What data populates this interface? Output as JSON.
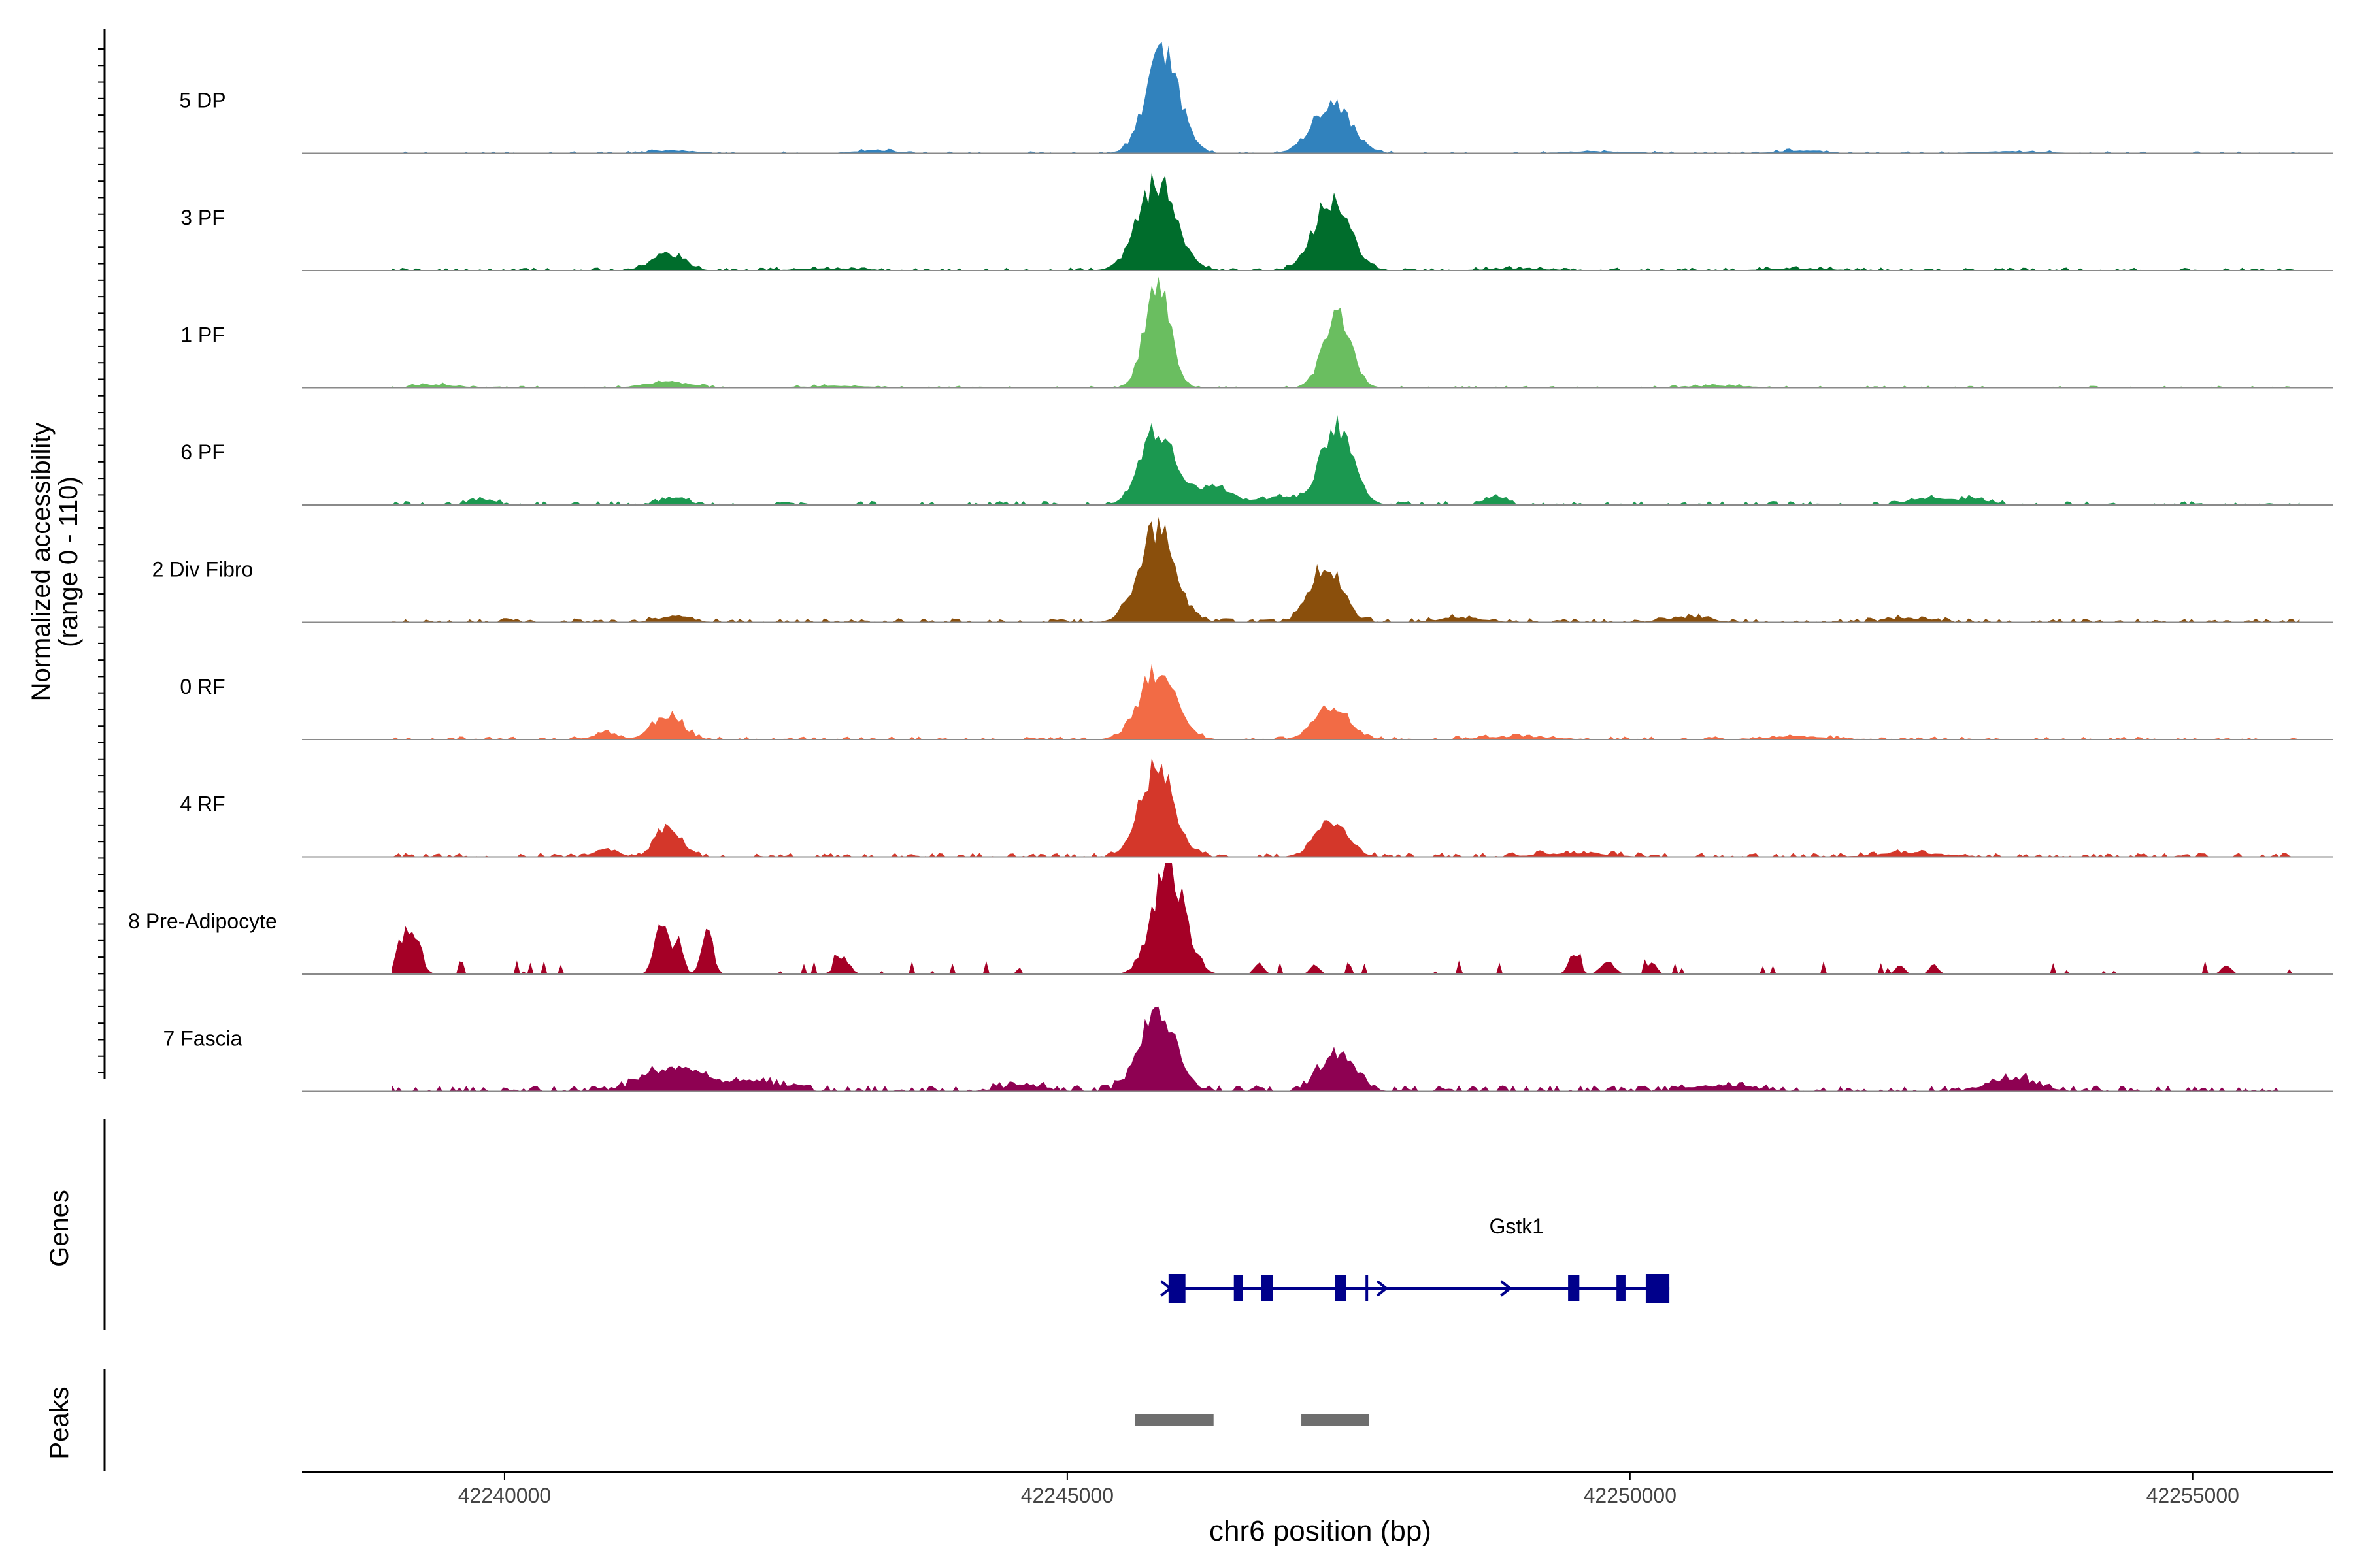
{
  "chart_data": {
    "type": "area",
    "title": "",
    "ylabel": "Normalized accessibility",
    "ylabel_range": "(range 0 - 110)",
    "xlabel": "chr6 position (bp)",
    "xlim": [
      42238200,
      42256250
    ],
    "ylim": [
      0,
      110
    ],
    "x_ticks": [
      42240000,
      42245000,
      42250000,
      42255000
    ],
    "x_tick_labels": [
      "42240000",
      "42245000",
      "42250000",
      "42255000"
    ],
    "genes_label": "Genes",
    "peaks_label": "Peaks",
    "series": [
      {
        "name": "5 DP",
        "color": "#3182bd",
        "peaks": [
          [
            42245850,
            100,
            150
          ],
          [
            42247350,
            50,
            170
          ],
          [
            42241500,
            3,
            200
          ],
          [
            42243300,
            3,
            200
          ],
          [
            42249700,
            2,
            300
          ],
          [
            42251500,
            3,
            200
          ],
          [
            42253400,
            2,
            300
          ]
        ],
        "noise": 2,
        "noise_density": 0.3,
        "seed": 11
      },
      {
        "name": "3 PF",
        "color": "#006d2c",
        "peaks": [
          [
            42245800,
            88,
            170
          ],
          [
            42247350,
            70,
            160
          ],
          [
            42241450,
            18,
            140
          ],
          [
            42242900,
            2,
            300
          ],
          [
            42249000,
            2,
            300
          ],
          [
            42251500,
            2,
            300
          ]
        ],
        "noise": 3,
        "noise_density": 0.4,
        "seed": 23
      },
      {
        "name": "1 PF",
        "color": "#6abe60",
        "peaks": [
          [
            42245800,
            110,
            110
          ],
          [
            42247400,
            80,
            120
          ],
          [
            42241450,
            6,
            200
          ],
          [
            42239400,
            3,
            200
          ],
          [
            42243000,
            2,
            300
          ],
          [
            42250800,
            2,
            300
          ]
        ],
        "noise": 2,
        "noise_density": 0.35,
        "seed": 37
      },
      {
        "name": "6 PF",
        "color": "#1b9850",
        "peaks": [
          [
            42245800,
            75,
            150
          ],
          [
            42247400,
            78,
            140
          ],
          [
            42246300,
            20,
            150
          ],
          [
            42241500,
            8,
            120
          ],
          [
            42239800,
            6,
            120
          ],
          [
            42248800,
            8,
            90
          ],
          [
            42252600,
            6,
            150
          ],
          [
            42253000,
            6,
            200
          ],
          [
            42246900,
            8,
            200
          ]
        ],
        "noise": 4,
        "noise_density": 0.45,
        "seed": 41
      },
      {
        "name": "2 Div Fibro",
        "color": "#8a4f0c",
        "peaks": [
          [
            42245800,
            95,
            160
          ],
          [
            42247300,
            60,
            140
          ],
          [
            42241500,
            6,
            150
          ],
          [
            42248500,
            5,
            200
          ],
          [
            42250500,
            5,
            200
          ],
          [
            42252500,
            4,
            200
          ]
        ],
        "noise": 4,
        "noise_density": 0.5,
        "seed": 53
      },
      {
        "name": "0 RF",
        "color": "#f26b45",
        "peaks": [
          [
            42245800,
            70,
            160
          ],
          [
            42247350,
            35,
            150
          ],
          [
            42241450,
            26,
            130
          ],
          [
            42240900,
            8,
            100
          ],
          [
            42249000,
            3,
            300
          ],
          [
            42251500,
            3,
            300
          ]
        ],
        "noise": 3,
        "noise_density": 0.45,
        "seed": 67
      },
      {
        "name": "4 RF",
        "color": "#d4372a",
        "peaks": [
          [
            42245800,
            90,
            150
          ],
          [
            42247350,
            38,
            140
          ],
          [
            42241450,
            30,
            110
          ],
          [
            42240900,
            8,
            100
          ],
          [
            42249500,
            4,
            300
          ],
          [
            42252500,
            4,
            300
          ]
        ],
        "noise": 4,
        "noise_density": 0.5,
        "seed": 79
      },
      {
        "name": "8 Pre-Adipocyte",
        "color": "#a50026",
        "peaks": [
          [
            42245900,
            110,
            140
          ],
          [
            42239150,
            45,
            80
          ],
          [
            42241400,
            55,
            60
          ],
          [
            42241550,
            35,
            40
          ],
          [
            42241800,
            45,
            50
          ],
          [
            42243000,
            18,
            60
          ],
          [
            42249500,
            18,
            50
          ],
          [
            42249800,
            12,
            60
          ],
          [
            42250200,
            12,
            40
          ],
          [
            42252400,
            10,
            40
          ],
          [
            42252700,
            10,
            40
          ],
          [
            42255300,
            10,
            40
          ],
          [
            42246700,
            12,
            40
          ],
          [
            42247200,
            10,
            40
          ]
        ],
        "noise": 14,
        "noise_density": 0.1,
        "seed": 97
      },
      {
        "name": "7 Fascia",
        "color": "#8e0152",
        "peaks": [
          [
            42245800,
            80,
            160
          ],
          [
            42247400,
            40,
            150
          ],
          [
            42241500,
            24,
            250
          ],
          [
            42242200,
            10,
            250
          ],
          [
            42253400,
            14,
            200
          ],
          [
            42250800,
            6,
            300
          ],
          [
            42244600,
            6,
            200
          ]
        ],
        "noise": 6,
        "noise_density": 0.55,
        "seed": 113
      }
    ],
    "gene": {
      "name": "Gstk1",
      "color": "#00008b",
      "start": 42245900,
      "end": 42250350,
      "exons": [
        [
          42245900,
          42246050
        ],
        [
          42246480,
          42246560
        ],
        [
          42246720,
          42246830
        ],
        [
          42247380,
          42247480
        ],
        [
          42247650,
          42247670
        ],
        [
          42249450,
          42249550
        ],
        [
          42249880,
          42249960
        ],
        [
          42250140,
          42250350
        ]
      ],
      "arrows": [
        42245880,
        42247800,
        42248900
      ]
    },
    "peaks_track": {
      "color": "#6e6e6e",
      "regions": [
        [
          42245600,
          42246300
        ],
        [
          42247080,
          42247680
        ]
      ]
    }
  }
}
